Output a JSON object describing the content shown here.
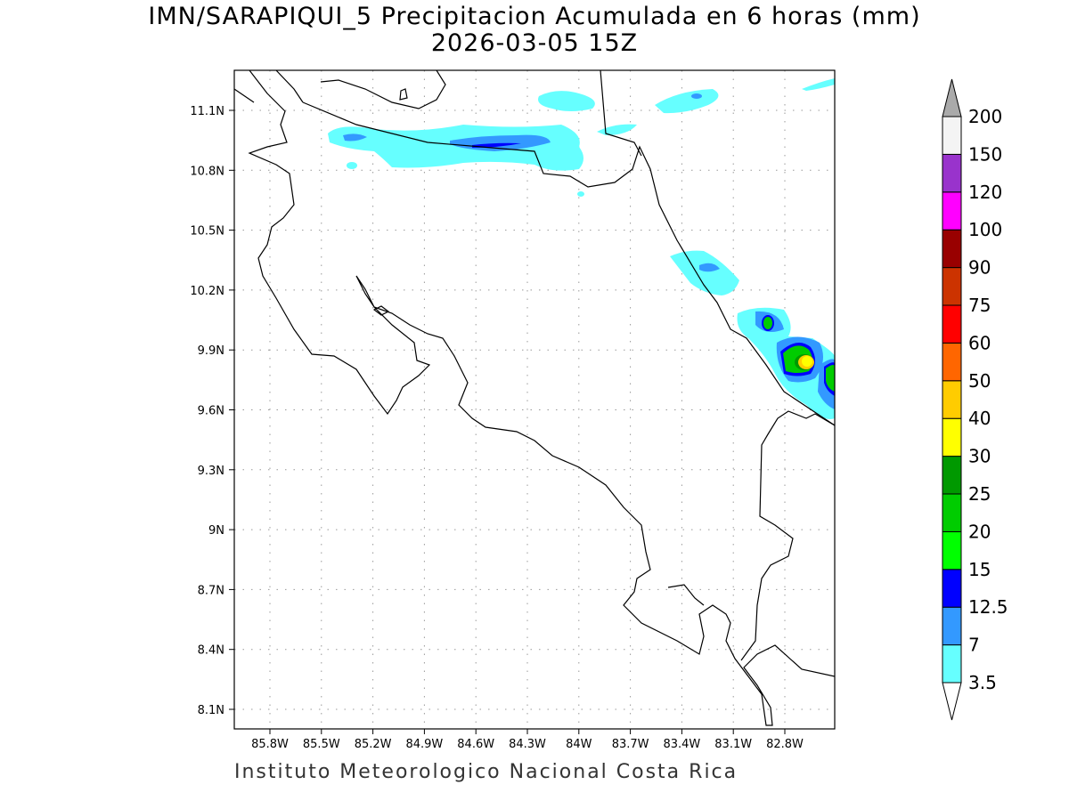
{
  "title": {
    "line1": "IMN/SARAPIQUI_5 Precipitacion Acumulada en 6 horas (mm)",
    "line2": "2026-03-05 15Z"
  },
  "footer": "Instituto Meteorologico Nacional Costa Rica",
  "axes": {
    "lon_ticks": [
      "85.8W",
      "85.5W",
      "85.2W",
      "84.9W",
      "84.6W",
      "84.3W",
      "84W",
      "83.7W",
      "83.4W",
      "83.1W",
      "82.8W"
    ],
    "lat_ticks": [
      "11.1N",
      "10.8N",
      "10.5N",
      "10.2N",
      "9.9N",
      "9.6N",
      "9.3N",
      "9N",
      "8.7N",
      "8.4N",
      "8.1N"
    ]
  },
  "colorbar": {
    "labels": [
      "3.5",
      "7",
      "12.5",
      "15",
      "20",
      "25",
      "30",
      "40",
      "50",
      "60",
      "75",
      "90",
      "100",
      "120",
      "150",
      "200"
    ],
    "colors": [
      "#66ffff",
      "#3399ff",
      "#0000ff",
      "#00ff00",
      "#00cc00",
      "#009900",
      "#ffff00",
      "#ffcc00",
      "#ff6600",
      "#ff0000",
      "#cc3300",
      "#990000",
      "#ff00ff",
      "#9933cc",
      "#f4f4f4"
    ],
    "over_color": "#aaaaaa",
    "under_color": "#ffffff"
  }
}
